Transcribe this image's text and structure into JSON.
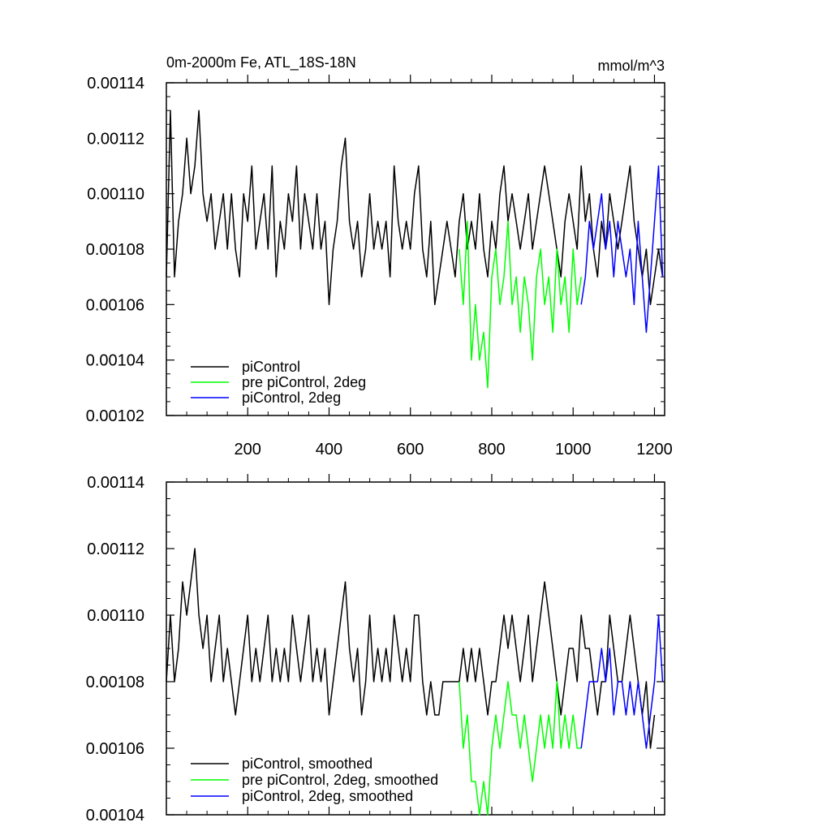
{
  "chart_data": [
    {
      "type": "line",
      "title": "0m-2000m Fe, ATL_18S-18N",
      "units": "mmol/m^3",
      "xlim": [
        0,
        1225
      ],
      "ylim": [
        0.00102,
        0.00114
      ],
      "x_ticks": [
        200,
        400,
        600,
        800,
        1000,
        1200
      ],
      "y_ticks": [
        "0.00102",
        "0.00104",
        "0.00106",
        "0.00108",
        "0.00110",
        "0.00112",
        "0.00114"
      ],
      "legend_position": "bottom-left",
      "series": [
        {
          "name": "piControl",
          "color": "#000000",
          "x": [
            0,
            10,
            20,
            30,
            40,
            50,
            60,
            70,
            80,
            90,
            100,
            110,
            120,
            130,
            140,
            150,
            160,
            170,
            180,
            190,
            200,
            210,
            220,
            230,
            240,
            250,
            260,
            270,
            280,
            290,
            300,
            310,
            320,
            330,
            340,
            350,
            360,
            370,
            380,
            390,
            400,
            410,
            420,
            430,
            440,
            450,
            460,
            470,
            480,
            490,
            500,
            510,
            520,
            530,
            540,
            550,
            560,
            570,
            580,
            590,
            600,
            610,
            620,
            630,
            640,
            650,
            660,
            670,
            680,
            690,
            700,
            710,
            720,
            730,
            740,
            750,
            760,
            770,
            780,
            790,
            800,
            810,
            820,
            830,
            840,
            850,
            860,
            870,
            880,
            890,
            900,
            910,
            920,
            930,
            940,
            950,
            960,
            970,
            980,
            990,
            1000,
            1010,
            1020,
            1030,
            1040,
            1050,
            1060,
            1070,
            1080,
            1090,
            1100,
            1110,
            1120,
            1130,
            1140,
            1150,
            1160,
            1170,
            1180,
            1190,
            1200,
            1210,
            1220
          ],
          "values": [
            0.00107,
            0.00113,
            0.00107,
            0.00109,
            0.0011,
            0.00112,
            0.0011,
            0.00111,
            0.00113,
            0.0011,
            0.00109,
            0.0011,
            0.00108,
            0.00109,
            0.0011,
            0.00108,
            0.0011,
            0.00108,
            0.00107,
            0.0011,
            0.00109,
            0.00111,
            0.00108,
            0.00109,
            0.0011,
            0.00108,
            0.00111,
            0.00107,
            0.00109,
            0.00108,
            0.0011,
            0.00109,
            0.00111,
            0.00108,
            0.0011,
            0.00109,
            0.00108,
            0.0011,
            0.00108,
            0.00109,
            0.00106,
            0.00108,
            0.00109,
            0.00111,
            0.00112,
            0.00109,
            0.00108,
            0.00109,
            0.00107,
            0.00108,
            0.0011,
            0.00108,
            0.00109,
            0.00108,
            0.00109,
            0.00107,
            0.00111,
            0.00109,
            0.00108,
            0.00109,
            0.00108,
            0.0011,
            0.00111,
            0.00108,
            0.00107,
            0.00109,
            0.00106,
            0.00107,
            0.00108,
            0.00109,
            0.00108,
            0.00107,
            0.00109,
            0.0011,
            0.00108,
            0.00109,
            0.00108,
            0.0011,
            0.00108,
            0.00107,
            0.00109,
            0.00108,
            0.0011,
            0.00111,
            0.00109,
            0.0011,
            0.00109,
            0.00108,
            0.00109,
            0.0011,
            0.00108,
            0.00109,
            0.0011,
            0.00111,
            0.0011,
            0.00109,
            0.00108,
            0.00107,
            0.00109,
            0.0011,
            0.00109,
            0.00108,
            0.00111,
            0.00109,
            0.0011,
            0.00108,
            0.00107,
            0.00109,
            0.00108,
            0.0011,
            0.00109,
            0.00108,
            0.00109,
            0.0011,
            0.00111,
            0.00109,
            0.00108,
            0.00107,
            0.00108,
            0.00106,
            0.00107,
            0.00108,
            0.00107
          ]
        },
        {
          "name": "pre piControl, 2deg",
          "color": "#00ff00",
          "x": [
            720,
            730,
            740,
            750,
            760,
            770,
            780,
            790,
            800,
            810,
            820,
            830,
            840,
            850,
            860,
            870,
            880,
            890,
            900,
            910,
            920,
            930,
            940,
            950,
            960,
            970,
            980,
            990,
            1000,
            1010,
            1020
          ],
          "values": [
            0.00108,
            0.00106,
            0.00109,
            0.00104,
            0.00106,
            0.00104,
            0.00105,
            0.00103,
            0.00107,
            0.00108,
            0.00106,
            0.00107,
            0.00109,
            0.00106,
            0.00107,
            0.00105,
            0.00107,
            0.00106,
            0.00104,
            0.00107,
            0.00108,
            0.00106,
            0.00107,
            0.00105,
            0.00108,
            0.00106,
            0.00107,
            0.00105,
            0.00108,
            0.00106,
            0.00107
          ]
        },
        {
          "name": "piControl, 2deg",
          "color": "#0000ff",
          "x": [
            1020,
            1030,
            1040,
            1050,
            1060,
            1070,
            1080,
            1090,
            1100,
            1110,
            1120,
            1130,
            1140,
            1150,
            1160,
            1170,
            1180,
            1190,
            1200,
            1210,
            1220
          ],
          "values": [
            0.00106,
            0.00107,
            0.00109,
            0.00108,
            0.00109,
            0.0011,
            0.00108,
            0.00109,
            0.00107,
            0.00109,
            0.00108,
            0.00107,
            0.00108,
            0.00106,
            0.00109,
            0.00107,
            0.00105,
            0.00107,
            0.00109,
            0.00111,
            0.00107
          ]
        }
      ]
    },
    {
      "type": "line",
      "xlim": [
        0,
        1225
      ],
      "ylim": [
        0.00104,
        0.00114
      ],
      "x_ticks": [
        200,
        400,
        600,
        800,
        1000,
        1200
      ],
      "y_ticks": [
        "0.00104",
        "0.00106",
        "0.00108",
        "0.00110",
        "0.00112",
        "0.00114"
      ],
      "legend_position": "bottom-left",
      "series": [
        {
          "name": "piControl, smoothed",
          "color": "#000000",
          "x": [
            0,
            10,
            20,
            30,
            40,
            50,
            60,
            70,
            80,
            90,
            100,
            110,
            120,
            130,
            140,
            150,
            160,
            170,
            180,
            190,
            200,
            210,
            220,
            230,
            240,
            250,
            260,
            270,
            280,
            290,
            300,
            310,
            320,
            330,
            340,
            350,
            360,
            370,
            380,
            390,
            400,
            410,
            420,
            430,
            440,
            450,
            460,
            470,
            480,
            490,
            500,
            510,
            520,
            530,
            540,
            550,
            560,
            570,
            580,
            590,
            600,
            610,
            620,
            630,
            640,
            650,
            660,
            670,
            680,
            690,
            700,
            710,
            720,
            730,
            740,
            750,
            760,
            770,
            780,
            790,
            800,
            810,
            820,
            830,
            840,
            850,
            860,
            870,
            880,
            890,
            900,
            910,
            920,
            930,
            940,
            950,
            960,
            970,
            980,
            990,
            1000,
            1010,
            1020,
            1030,
            1040,
            1050,
            1060,
            1070,
            1080,
            1090,
            1100,
            1110,
            1120,
            1130,
            1140,
            1150,
            1160,
            1170,
            1180,
            1190,
            1200
          ],
          "values": [
            0.00108,
            0.0011,
            0.00108,
            0.00109,
            0.00111,
            0.0011,
            0.00111,
            0.00112,
            0.0011,
            0.00109,
            0.0011,
            0.00108,
            0.00109,
            0.0011,
            0.00108,
            0.00109,
            0.00108,
            0.00107,
            0.00108,
            0.00109,
            0.0011,
            0.00108,
            0.00109,
            0.00108,
            0.00109,
            0.0011,
            0.00108,
            0.00109,
            0.00108,
            0.00109,
            0.00108,
            0.0011,
            0.00109,
            0.00108,
            0.00109,
            0.0011,
            0.00108,
            0.00109,
            0.00108,
            0.00109,
            0.00107,
            0.00108,
            0.00109,
            0.0011,
            0.00111,
            0.00109,
            0.00108,
            0.00109,
            0.00107,
            0.00108,
            0.0011,
            0.00108,
            0.00109,
            0.00108,
            0.00109,
            0.00108,
            0.0011,
            0.00109,
            0.00108,
            0.00109,
            0.00108,
            0.0011,
            0.0011,
            0.00108,
            0.00107,
            0.00108,
            0.00107,
            0.00107,
            0.00108,
            0.00108,
            0.00108,
            0.00108,
            0.00108,
            0.00109,
            0.00108,
            0.00109,
            0.00108,
            0.00109,
            0.00108,
            0.00107,
            0.00108,
            0.00108,
            0.00109,
            0.0011,
            0.00109,
            0.0011,
            0.00109,
            0.00108,
            0.00109,
            0.0011,
            0.00108,
            0.00109,
            0.0011,
            0.00111,
            0.0011,
            0.00109,
            0.00108,
            0.00107,
            0.00108,
            0.00109,
            0.00109,
            0.00108,
            0.0011,
            0.00109,
            0.00109,
            0.00108,
            0.00107,
            0.00108,
            0.00108,
            0.0011,
            0.00109,
            0.00108,
            0.00108,
            0.00109,
            0.0011,
            0.00109,
            0.00108,
            0.00107,
            0.00108,
            0.00106,
            0.00107
          ]
        },
        {
          "name": "pre piControl, 2deg, smoothed",
          "color": "#00ff00",
          "x": [
            720,
            730,
            740,
            750,
            760,
            770,
            780,
            790,
            800,
            810,
            820,
            830,
            840,
            850,
            860,
            870,
            880,
            890,
            900,
            910,
            920,
            930,
            940,
            950,
            960,
            970,
            980,
            990,
            1000,
            1010,
            1020
          ],
          "values": [
            0.00108,
            0.00106,
            0.00107,
            0.00105,
            0.00105,
            0.00104,
            0.00105,
            0.00104,
            0.00106,
            0.00107,
            0.00106,
            0.00107,
            0.00108,
            0.00107,
            0.00107,
            0.00106,
            0.00107,
            0.00106,
            0.00105,
            0.00106,
            0.00107,
            0.00106,
            0.00107,
            0.00106,
            0.00108,
            0.00106,
            0.00107,
            0.00106,
            0.00107,
            0.00106,
            0.00106
          ]
        },
        {
          "name": "piControl, 2deg, smoothed",
          "color": "#0000ff",
          "x": [
            1020,
            1030,
            1040,
            1050,
            1060,
            1070,
            1080,
            1090,
            1100,
            1110,
            1120,
            1130,
            1140,
            1150,
            1160,
            1170,
            1180,
            1190,
            1200,
            1210,
            1220
          ],
          "values": [
            0.00106,
            0.00107,
            0.00108,
            0.00108,
            0.00108,
            0.00109,
            0.00108,
            0.00109,
            0.00107,
            0.00108,
            0.00108,
            0.00107,
            0.00108,
            0.00107,
            0.00108,
            0.00107,
            0.00106,
            0.00107,
            0.00108,
            0.0011,
            0.00108
          ]
        }
      ]
    }
  ]
}
